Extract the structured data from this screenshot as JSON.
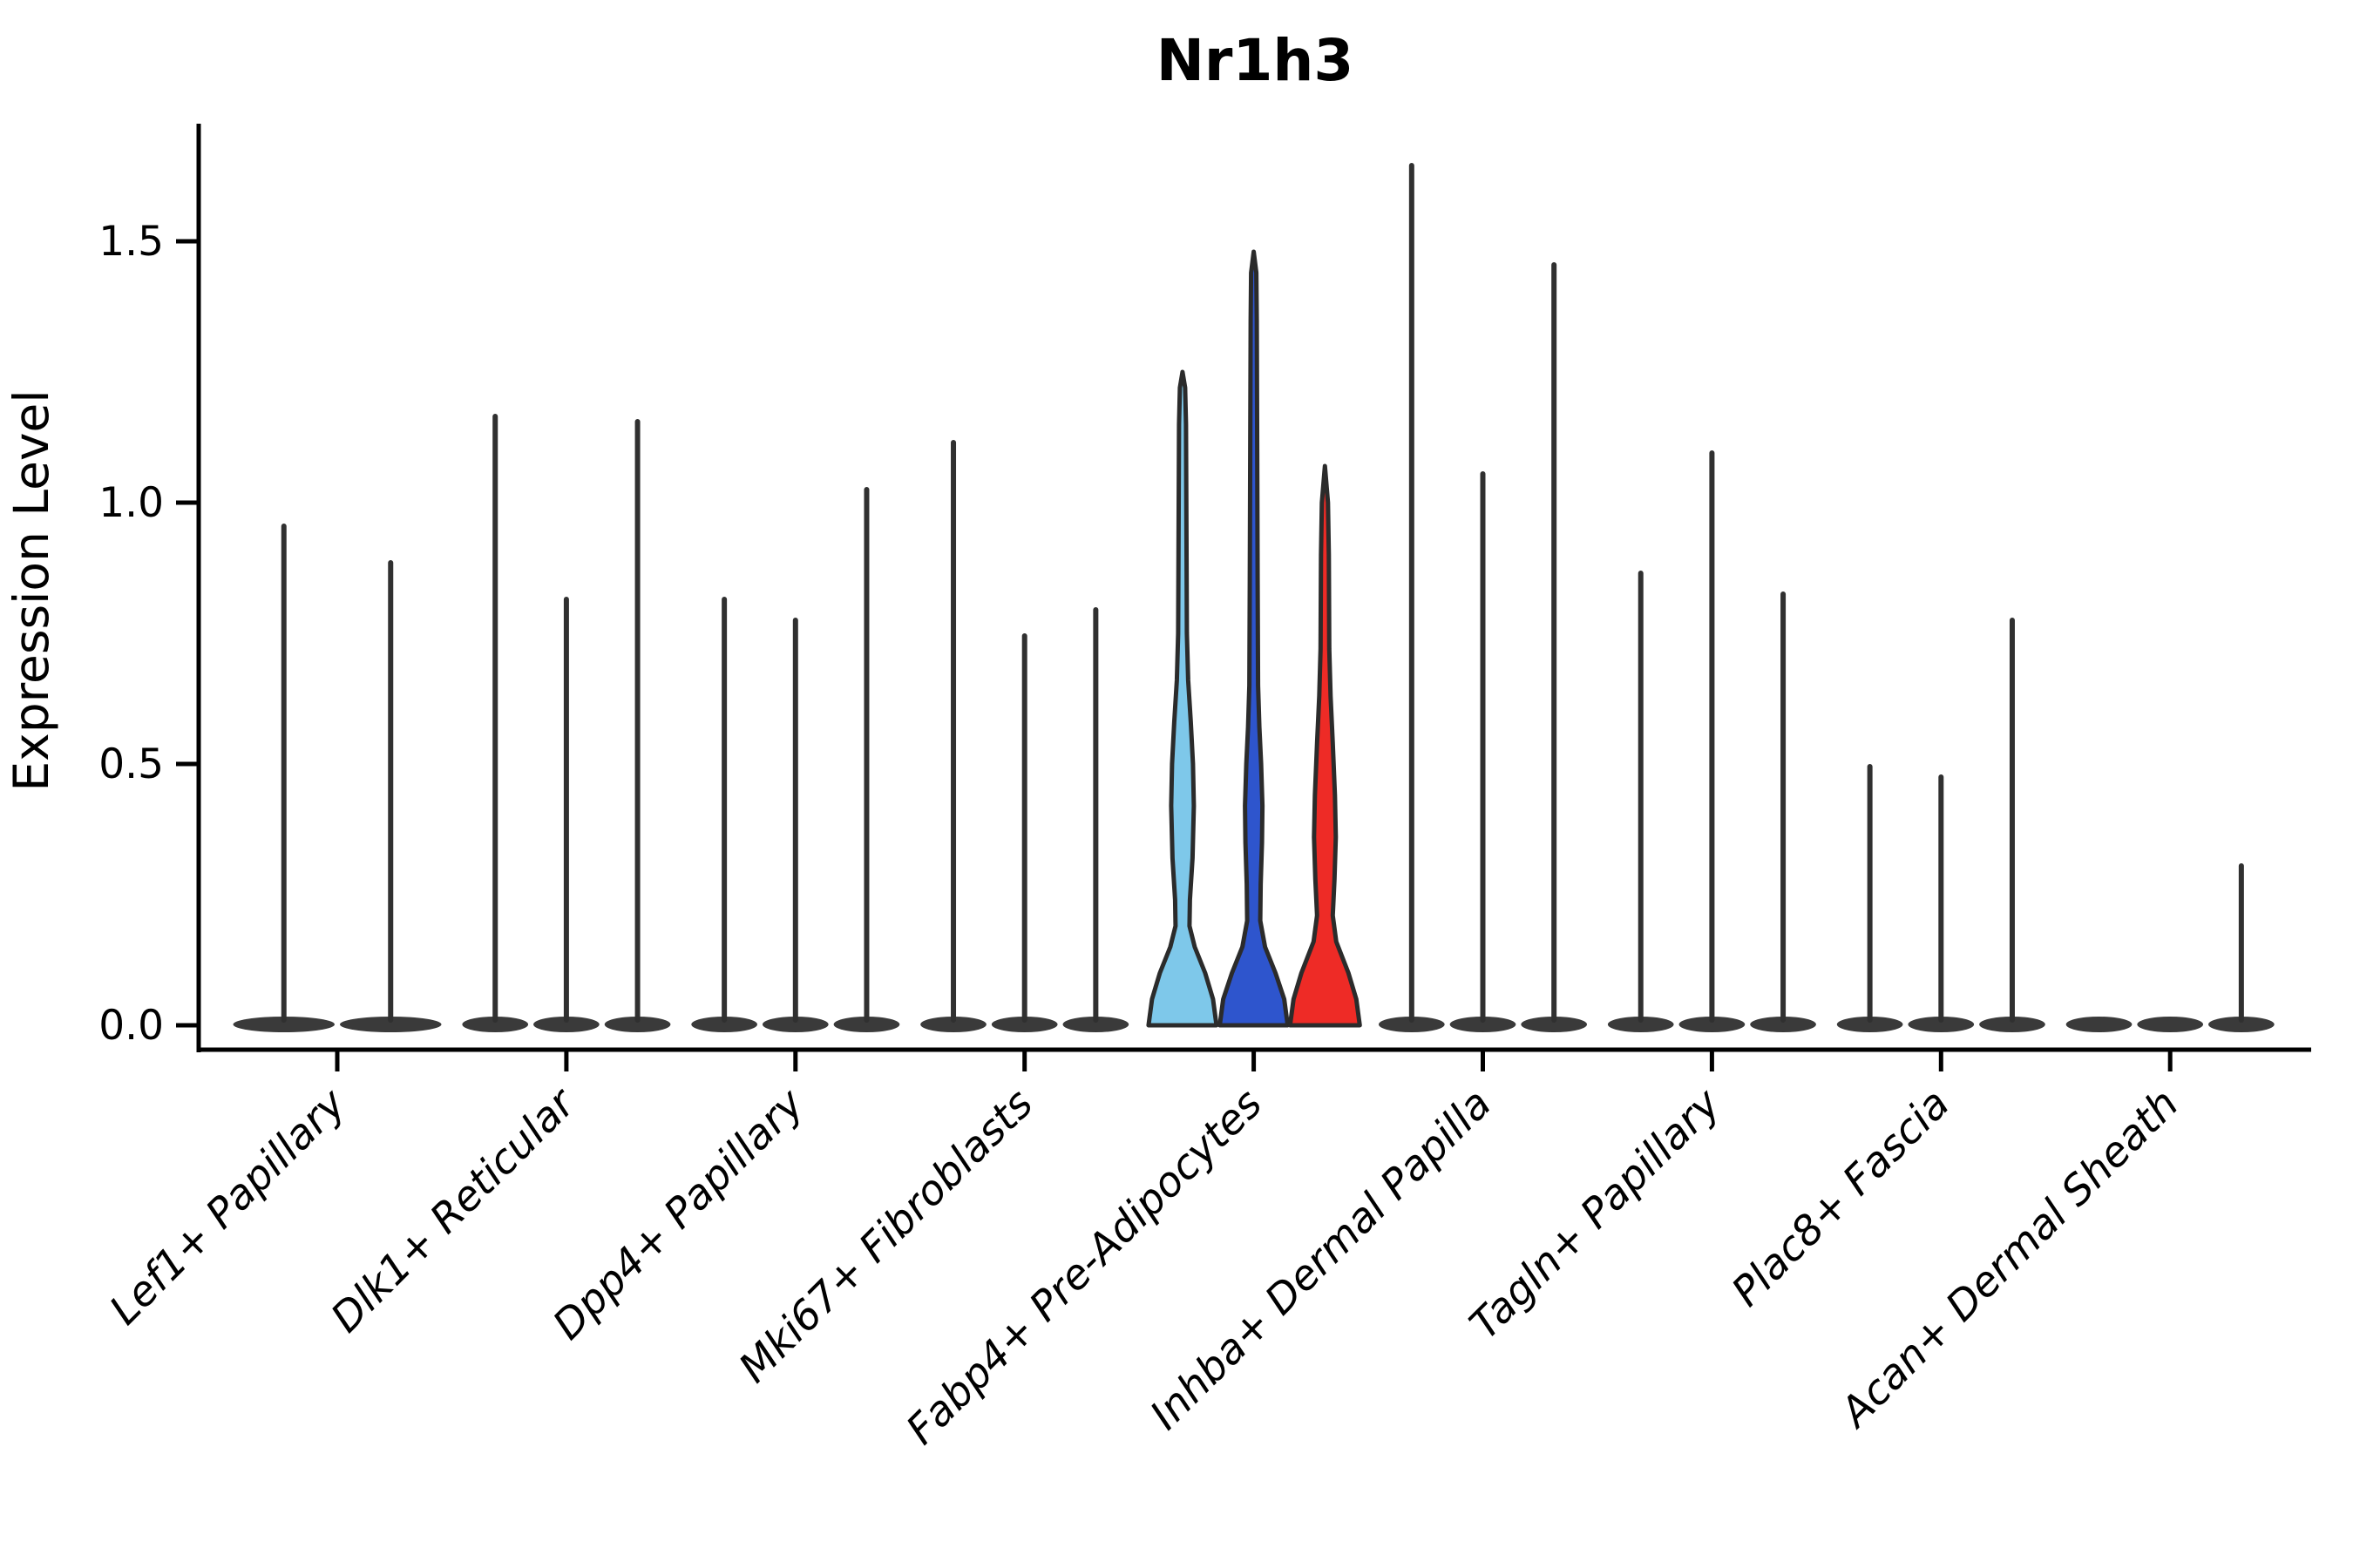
{
  "title": "Nr1h3",
  "chart_data": {
    "type": "violin",
    "title": "Nr1h3",
    "xlabel": "",
    "ylabel": "Expression Level",
    "ytick_labels": [
      "0.0",
      "0.5",
      "1.0",
      "1.5"
    ],
    "ytick_values": [
      0.0,
      0.5,
      1.0,
      1.5
    ],
    "ylim": [
      -0.045,
      1.72
    ],
    "grid": false,
    "legend": "none",
    "colors": {
      "spike": "#303030",
      "pancake": "#3a3a3a",
      "outline": "#2b2b2b",
      "axis": "#000000",
      "highlight_lightblue": "#7ec8ea",
      "highlight_blue": "#2e55cd",
      "highlight_red": "#ee2b26"
    },
    "categories": [
      {
        "label": "Lef1+ Papillary",
        "violins": [
          {
            "type": "spike",
            "max": 0.96
          },
          {
            "type": "spike",
            "max": 0.89
          }
        ]
      },
      {
        "label": "Dlk1+ Reticular",
        "violins": [
          {
            "type": "spike",
            "max": 1.17
          },
          {
            "type": "spike",
            "max": 0.82
          },
          {
            "type": "spike",
            "max": 1.16
          }
        ]
      },
      {
        "label": "Dpp4+ Papillary",
        "violins": [
          {
            "type": "spike",
            "max": 0.82
          },
          {
            "type": "spike",
            "max": 0.78
          },
          {
            "type": "spike",
            "max": 1.03
          }
        ]
      },
      {
        "label": "Mki67+ Fibroblasts",
        "violins": [
          {
            "type": "spike",
            "max": 1.12
          },
          {
            "type": "spike",
            "max": 0.75
          },
          {
            "type": "spike",
            "max": 0.8
          }
        ]
      },
      {
        "label": "Fabp4+ Pre-Adipocytes",
        "violins": [
          {
            "type": "density",
            "max": 1.25,
            "color": "#7ec8ea",
            "profile": [
              [
                0,
                39
              ],
              [
                0.05,
                35
              ],
              [
                0.1,
                26
              ],
              [
                0.15,
                14
              ],
              [
                0.19,
                8
              ],
              [
                0.24,
                8.5
              ],
              [
                0.32,
                11.5
              ],
              [
                0.42,
                13
              ],
              [
                0.5,
                12
              ],
              [
                0.58,
                9.5
              ],
              [
                0.66,
                6.5
              ],
              [
                0.75,
                5
              ],
              [
                0.95,
                4.5
              ],
              [
                1.15,
                4
              ],
              [
                1.22,
                3
              ],
              [
                1.25,
                0
              ]
            ]
          },
          {
            "type": "density",
            "max": 1.48,
            "color": "#2e55cd",
            "profile": [
              [
                0,
                39
              ],
              [
                0.05,
                35
              ],
              [
                0.1,
                25
              ],
              [
                0.15,
                13
              ],
              [
                0.2,
                7.5
              ],
              [
                0.27,
                8
              ],
              [
                0.35,
                9.5
              ],
              [
                0.42,
                10
              ],
              [
                0.5,
                8.5
              ],
              [
                0.57,
                6.5
              ],
              [
                0.65,
                5
              ],
              [
                0.85,
                4.5
              ],
              [
                1.1,
                4
              ],
              [
                1.35,
                3.5
              ],
              [
                1.44,
                3
              ],
              [
                1.48,
                0
              ]
            ]
          },
          {
            "type": "density",
            "max": 1.07,
            "color": "#ee2b26",
            "profile": [
              [
                0,
                40
              ],
              [
                0.05,
                36
              ],
              [
                0.1,
                27
              ],
              [
                0.16,
                13
              ],
              [
                0.21,
                9
              ],
              [
                0.28,
                11
              ],
              [
                0.36,
                12.5
              ],
              [
                0.44,
                11.5
              ],
              [
                0.54,
                9
              ],
              [
                0.63,
                6.5
              ],
              [
                0.72,
                5
              ],
              [
                0.9,
                4.5
              ],
              [
                1.0,
                3.5
              ],
              [
                1.07,
                0
              ]
            ]
          }
        ]
      },
      {
        "label": "Inhba+ Dermal Papilla",
        "violins": [
          {
            "type": "spike",
            "max": 1.65
          },
          {
            "type": "spike",
            "max": 1.06
          },
          {
            "type": "spike",
            "max": 1.46
          }
        ]
      },
      {
        "label": "Tagln+ Papillary",
        "violins": [
          {
            "type": "spike",
            "max": 0.87
          },
          {
            "type": "spike",
            "max": 1.1
          },
          {
            "type": "spike",
            "max": 0.83
          }
        ]
      },
      {
        "label": "Plac8+ Fascia",
        "violins": [
          {
            "type": "spike",
            "max": 0.5
          },
          {
            "type": "spike",
            "max": 0.48
          },
          {
            "type": "spike",
            "max": 0.78
          }
        ]
      },
      {
        "label": "Acan+ Dermal Sheath",
        "violins": [
          {
            "type": "spike",
            "max": 0.0
          },
          {
            "type": "spike",
            "max": 0.0
          },
          {
            "type": "spike",
            "max": 0.31
          }
        ]
      }
    ]
  }
}
